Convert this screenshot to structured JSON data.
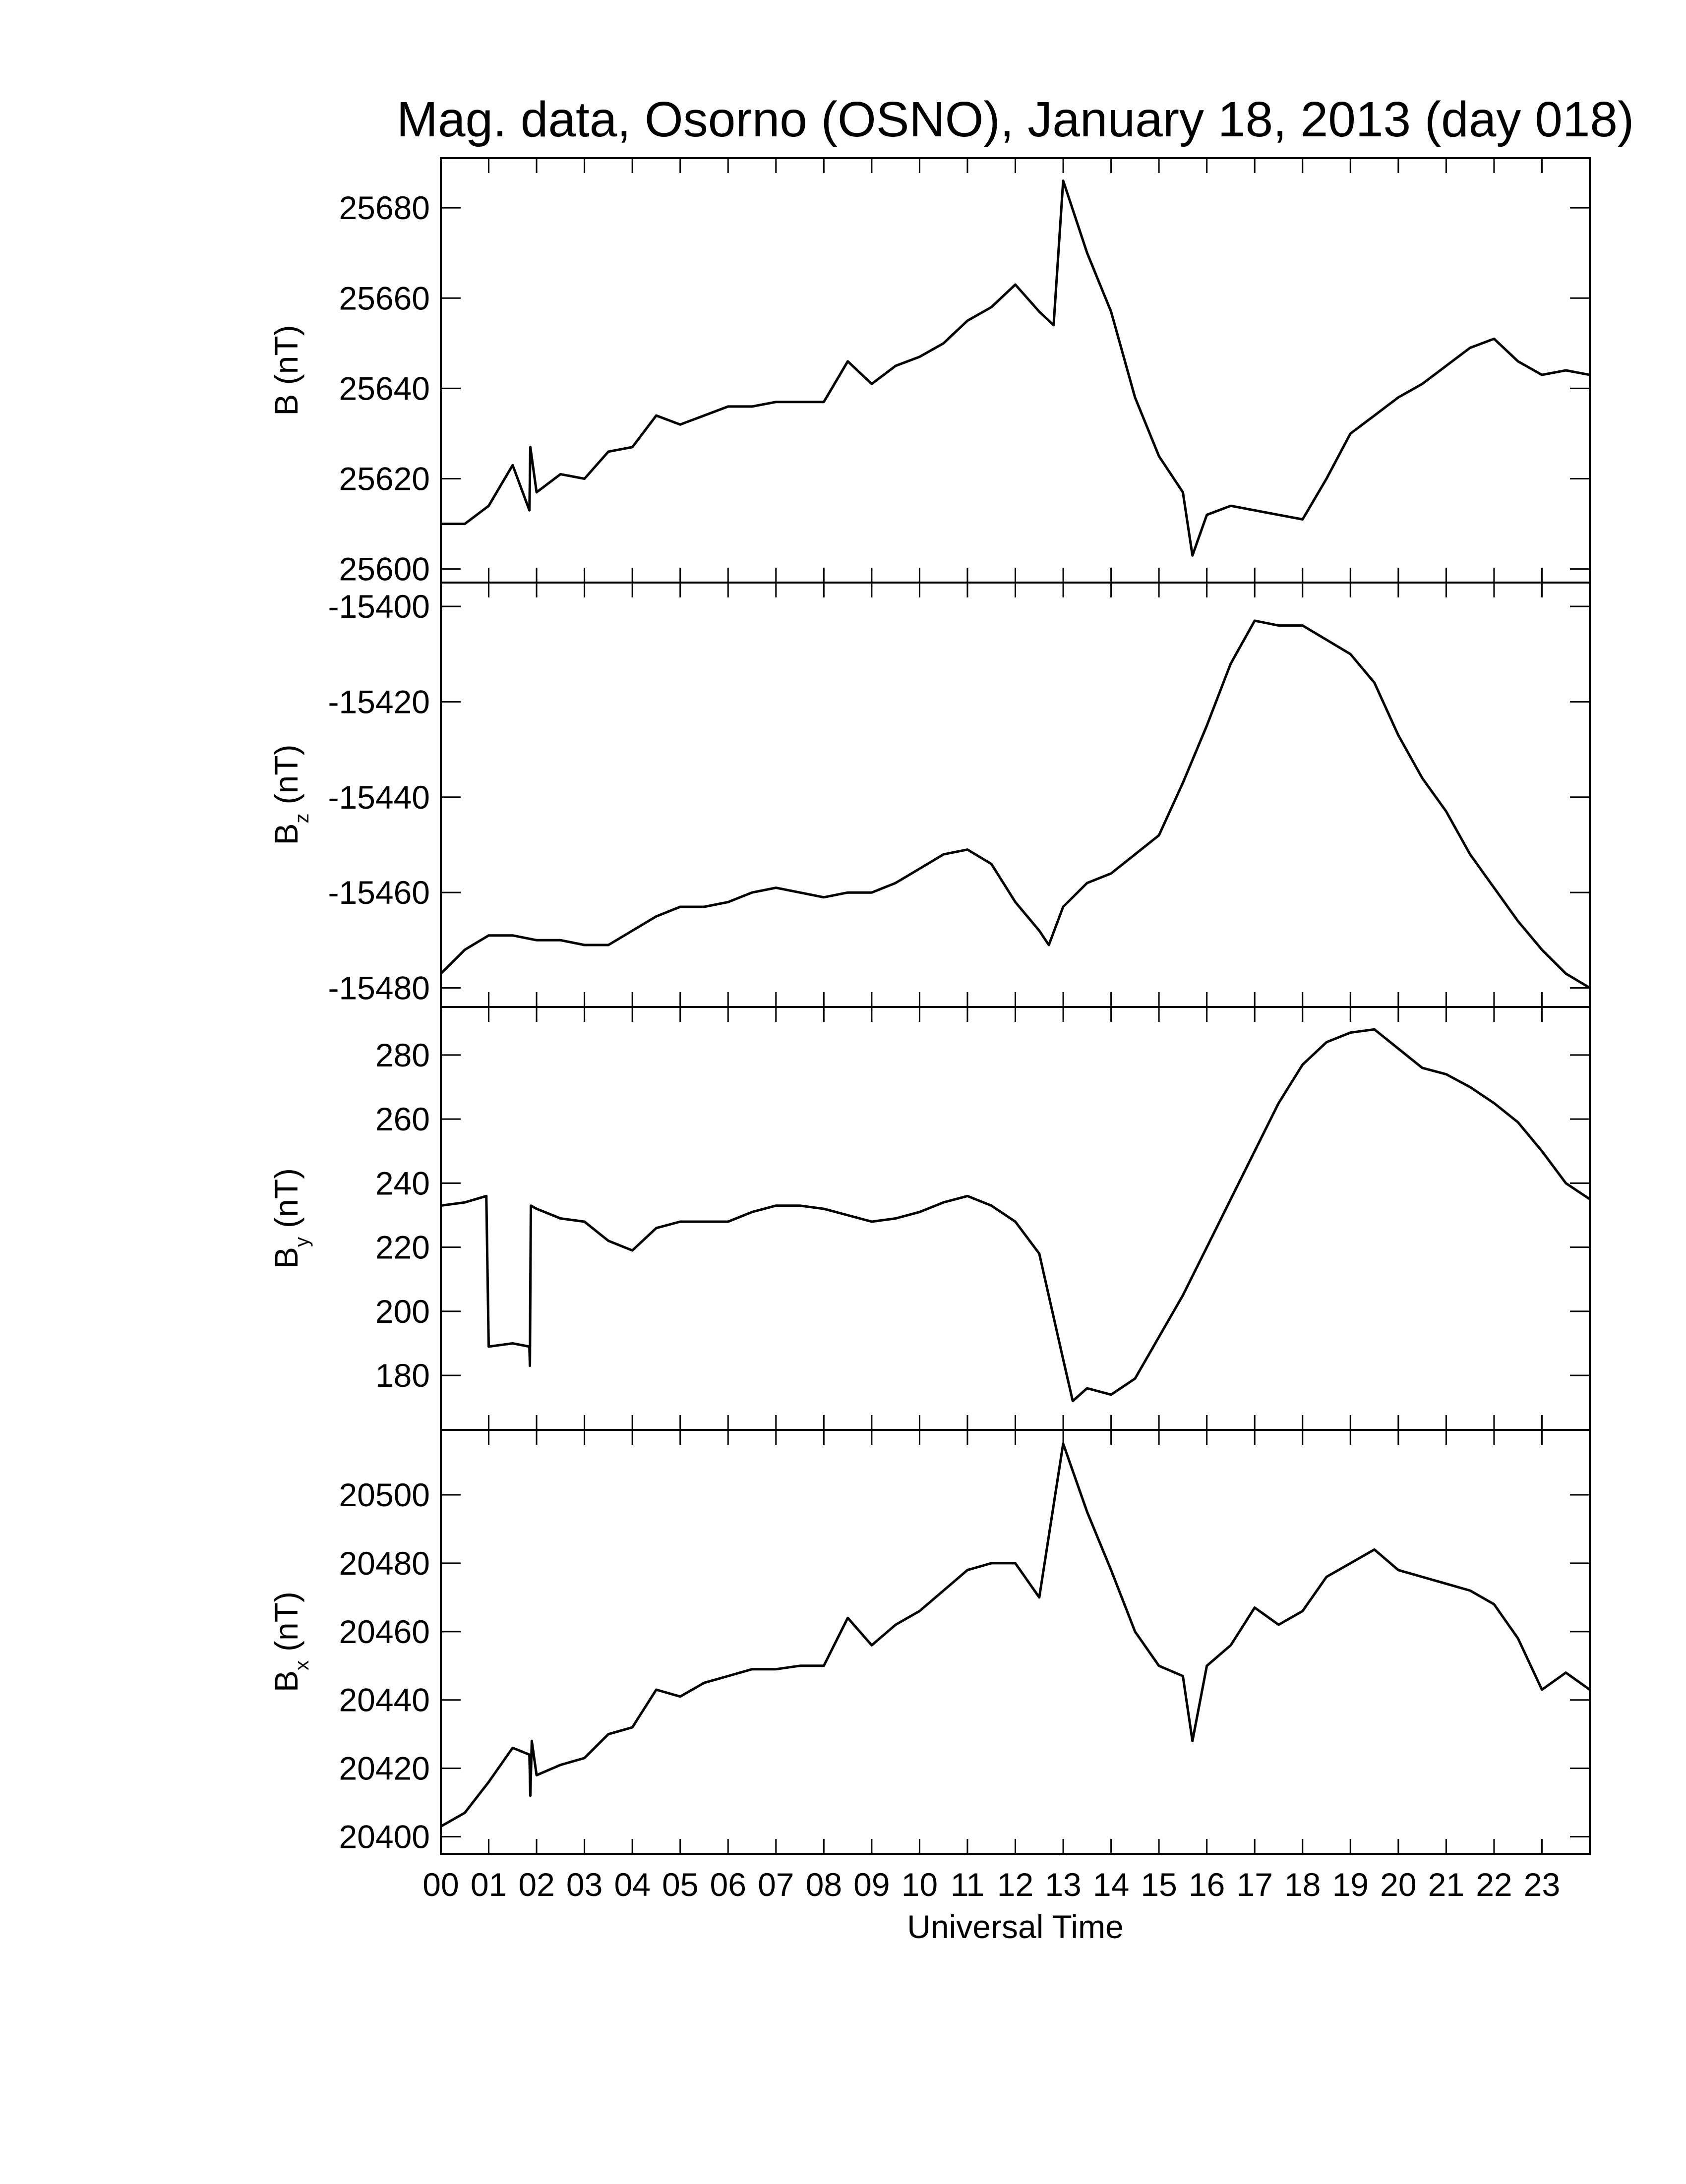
{
  "chart_data": [
    {
      "type": "line",
      "title": "Mag. data, Osorno (OSNO), January 18, 2013 (day 018)",
      "y_label": "B (nT)",
      "color": "#000000",
      "xlim": [
        0,
        24
      ],
      "ylim": [
        25597,
        25691
      ],
      "yticks": [
        25600,
        25620,
        25640,
        25660,
        25680
      ],
      "x": [
        0,
        0.5,
        1,
        1.5,
        1.85,
        1.87,
        2,
        2.5,
        3,
        3.5,
        4,
        4.5,
        5,
        5.5,
        6,
        6.5,
        7,
        7.5,
        8,
        8.5,
        9,
        9.5,
        10,
        10.5,
        11,
        11.5,
        12,
        12.5,
        12.8,
        13,
        13.5,
        14,
        14.5,
        15,
        15.5,
        15.7,
        16,
        16.5,
        17,
        17.5,
        18,
        18.5,
        19,
        19.5,
        20,
        20.5,
        21,
        21.5,
        22,
        22.5,
        23,
        23.5,
        24
      ],
      "values": [
        25610,
        25610,
        25614,
        25623,
        25613,
        25627,
        25617,
        25621,
        25620,
        25626,
        25627,
        25634,
        25632,
        25634,
        25636,
        25636,
        25637,
        25637,
        25637,
        25646,
        25641,
        25645,
        25647,
        25650,
        25655,
        25658,
        25663,
        25657,
        25654,
        25686,
        25670,
        25657,
        25638,
        25625,
        25617,
        25603,
        25612,
        25614,
        25613,
        25612,
        25611,
        25620,
        25630,
        25634,
        25638,
        25641,
        25645,
        25649,
        25651,
        25646,
        25643,
        25644,
        25643
      ]
    },
    {
      "type": "line",
      "y_label": "B",
      "y_label_sub": "z",
      "y_label_unit": "(nT)",
      "color": "#000000",
      "xlim": [
        0,
        24
      ],
      "ylim": [
        -15484,
        -15395
      ],
      "yticks": [
        -15480,
        -15460,
        -15440,
        -15420,
        -15400
      ],
      "x": [
        0,
        0.5,
        1,
        1.5,
        2,
        2.5,
        3,
        3.5,
        4,
        4.5,
        5,
        5.5,
        6,
        6.5,
        7,
        7.5,
        8,
        8.5,
        9,
        9.5,
        10,
        10.5,
        11,
        11.5,
        12,
        12.5,
        12.7,
        13,
        13.5,
        14,
        14.5,
        15,
        15.5,
        16,
        16.5,
        17,
        17.5,
        18,
        18.5,
        19,
        19.5,
        20,
        20.5,
        21,
        21.5,
        22,
        22.5,
        23,
        23.5,
        24
      ],
      "values": [
        -15477,
        -15472,
        -15469,
        -15469,
        -15470,
        -15470,
        -15471,
        -15471,
        -15468,
        -15465,
        -15463,
        -15463,
        -15462,
        -15460,
        -15459,
        -15460,
        -15461,
        -15460,
        -15460,
        -15458,
        -15455,
        -15452,
        -15451,
        -15454,
        -15462,
        -15468,
        -15471,
        -15463,
        -15458,
        -15456,
        -15452,
        -15448,
        -15437,
        -15425,
        -15412,
        -15403,
        -15404,
        -15404,
        -15407,
        -15410,
        -15416,
        -15427,
        -15436,
        -15443,
        -15452,
        -15459,
        -15466,
        -15472,
        -15477,
        -15480
      ]
    },
    {
      "type": "line",
      "y_label": "B",
      "y_label_sub": "y",
      "y_label_unit": "(nT)",
      "color": "#000000",
      "xlim": [
        0,
        24
      ],
      "ylim": [
        163,
        295
      ],
      "yticks": [
        180,
        200,
        220,
        240,
        260,
        280
      ],
      "x": [
        0,
        0.5,
        0.95,
        1,
        1.5,
        1.85,
        1.86,
        1.88,
        2,
        2.5,
        3,
        3.5,
        4,
        4.5,
        5,
        5.5,
        6,
        6.5,
        7,
        7.5,
        8,
        8.5,
        9,
        9.5,
        10,
        10.5,
        11,
        11.5,
        12,
        12.5,
        13,
        13.2,
        13.5,
        14,
        14.5,
        15,
        15.5,
        16,
        16.5,
        17,
        17.5,
        18,
        18.5,
        19,
        19.5,
        20,
        20.5,
        21,
        21.5,
        22,
        22.5,
        23,
        23.5,
        24
      ],
      "values": [
        233,
        234,
        236,
        189,
        190,
        189,
        183,
        233,
        232,
        229,
        228,
        222,
        219,
        226,
        228,
        228,
        228,
        231,
        233,
        233,
        232,
        230,
        228,
        229,
        231,
        234,
        236,
        233,
        228,
        218,
        185,
        172,
        176,
        174,
        179,
        192,
        205,
        220,
        235,
        250,
        265,
        277,
        284,
        287,
        288,
        282,
        276,
        274,
        270,
        265,
        259,
        250,
        240,
        235
      ]
    },
    {
      "type": "line",
      "y_label": "B",
      "y_label_sub": "x",
      "y_label_unit": "(nT)",
      "x_label": "Universal Time",
      "color": "#000000",
      "xlim": [
        0,
        24
      ],
      "ylim": [
        20395,
        20519
      ],
      "yticks": [
        20400,
        20420,
        20440,
        20460,
        20480,
        20500
      ],
      "xticks": [
        {
          "value": 0,
          "label": "00"
        },
        {
          "value": 1,
          "label": "01"
        },
        {
          "value": 2,
          "label": "02"
        },
        {
          "value": 3,
          "label": "03"
        },
        {
          "value": 4,
          "label": "04"
        },
        {
          "value": 5,
          "label": "05"
        },
        {
          "value": 6,
          "label": "06"
        },
        {
          "value": 7,
          "label": "07"
        },
        {
          "value": 8,
          "label": "08"
        },
        {
          "value": 9,
          "label": "09"
        },
        {
          "value": 10,
          "label": "10"
        },
        {
          "value": 11,
          "label": "11"
        },
        {
          "value": 12,
          "label": "12"
        },
        {
          "value": 13,
          "label": "13"
        },
        {
          "value": 14,
          "label": "14"
        },
        {
          "value": 15,
          "label": "15"
        },
        {
          "value": 16,
          "label": "16"
        },
        {
          "value": 17,
          "label": "17"
        },
        {
          "value": 18,
          "label": "18"
        },
        {
          "value": 19,
          "label": "19"
        },
        {
          "value": 20,
          "label": "20"
        },
        {
          "value": 21,
          "label": "21"
        },
        {
          "value": 22,
          "label": "22"
        },
        {
          "value": 23,
          "label": "23"
        }
      ],
      "x": [
        0,
        0.5,
        1,
        1.5,
        1.85,
        1.87,
        1.9,
        2,
        2.5,
        3,
        3.5,
        4,
        4.5,
        5,
        5.5,
        6,
        6.5,
        7,
        7.5,
        8,
        8.5,
        9,
        9.5,
        10,
        10.5,
        11,
        11.5,
        12,
        12.5,
        13,
        13.5,
        14,
        14.5,
        15,
        15.5,
        15.7,
        16,
        16.5,
        17,
        17.5,
        18,
        18.5,
        19,
        19.5,
        20,
        20.5,
        21,
        21.5,
        22,
        22.5,
        23,
        23.5,
        24
      ],
      "values": [
        20403,
        20407,
        20416,
        20426,
        20424,
        20412,
        20428,
        20418,
        20421,
        20423,
        20430,
        20432,
        20443,
        20441,
        20445,
        20447,
        20449,
        20449,
        20450,
        20450,
        20464,
        20456,
        20462,
        20466,
        20472,
        20478,
        20480,
        20480,
        20470,
        20515,
        20495,
        20478,
        20460,
        20450,
        20447,
        20428,
        20450,
        20456,
        20467,
        20462,
        20466,
        20476,
        20480,
        20484,
        20478,
        20476,
        20474,
        20472,
        20468,
        20458,
        20443,
        20448,
        20443
      ]
    }
  ]
}
